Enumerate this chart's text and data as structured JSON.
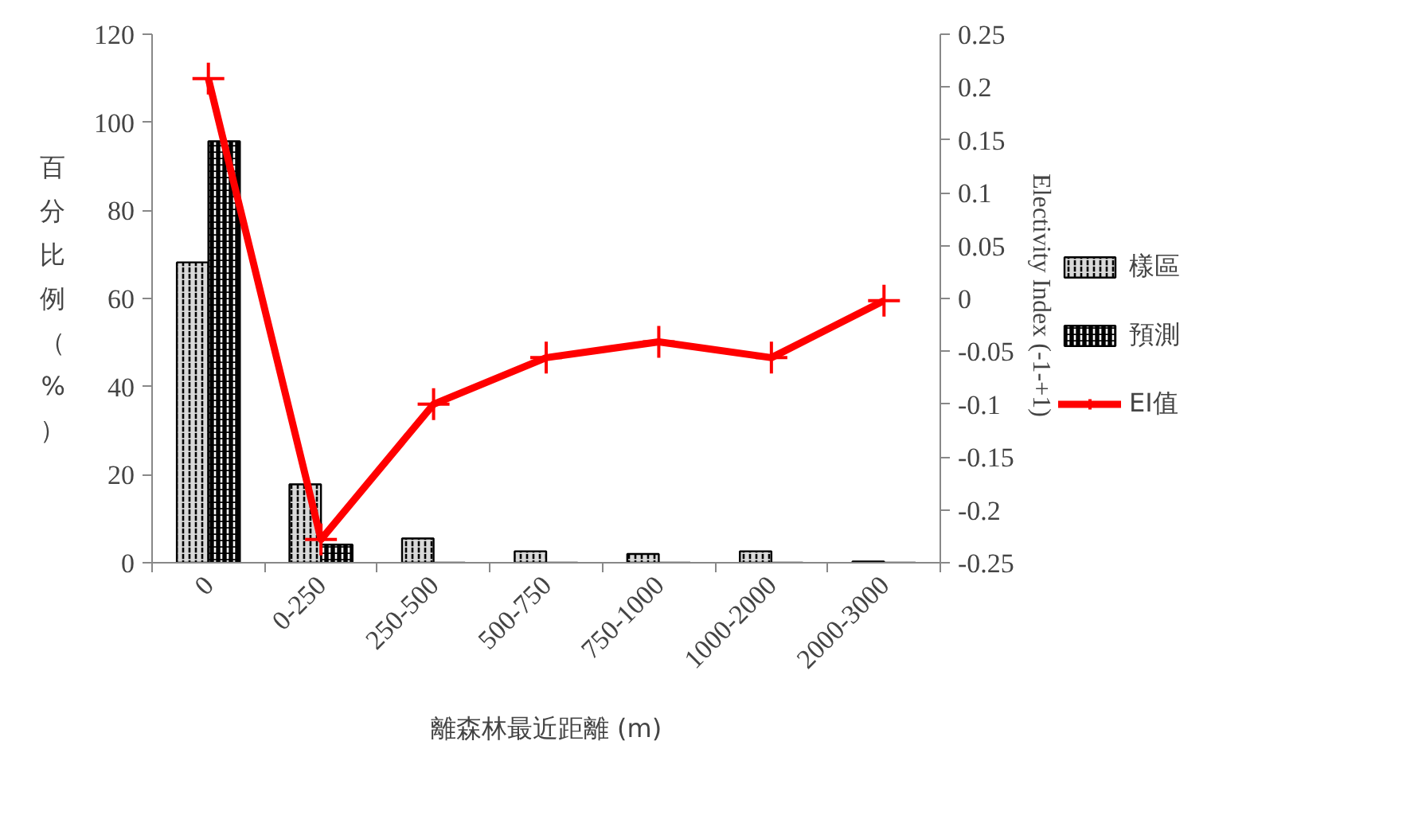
{
  "chart_data": {
    "type": "bar",
    "xlabel": "離森林最近距離 (m)",
    "ylabel": "百分比例（%）",
    "y2label": "Electivity  Index (-1-+1)",
    "categories": [
      "0",
      "0-250",
      "250-500",
      "500-750",
      "750-1000",
      "1000-2000",
      "2000-3000"
    ],
    "series": [
      {
        "name": "樣區",
        "color": "#d9d9d9",
        "values": [
          68.2,
          17.8,
          5.5,
          2.6,
          2.0,
          2.6,
          0.3
        ]
      },
      {
        "name": "預測",
        "color": "#000000",
        "values": [
          95.7,
          4.1,
          0,
          0,
          0,
          0,
          0
        ]
      },
      {
        "name": "EI值",
        "type": "line",
        "axis": "y2",
        "color": "#ff0000",
        "marker": "cross",
        "values": [
          0.208,
          -0.228,
          -0.1,
          -0.056,
          -0.041,
          -0.056,
          -0.002
        ]
      }
    ],
    "ylim": [
      0,
      120
    ],
    "yticks": [
      0,
      20,
      40,
      60,
      80,
      100,
      120
    ],
    "y2lim": [
      -0.25,
      0.25
    ],
    "y2ticks": [
      -0.25,
      -0.2,
      -0.15,
      -0.1,
      -0.05,
      0,
      0.05,
      0.1,
      0.15,
      0.2,
      0.25
    ],
    "grid": false,
    "legend": "right"
  }
}
